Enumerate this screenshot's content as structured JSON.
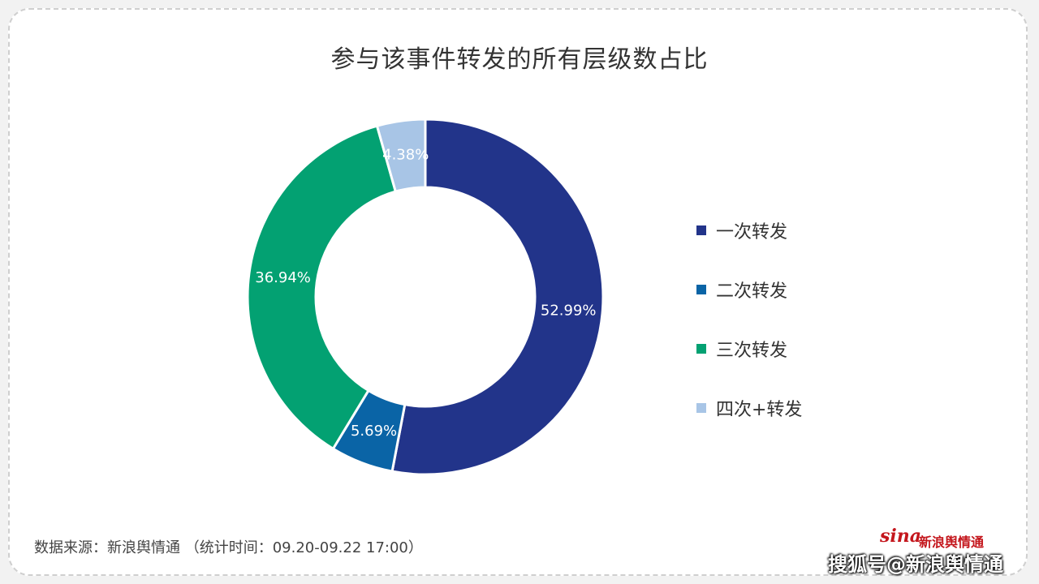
{
  "title": "参与该事件转发的所有层级数占比",
  "chart_data": {
    "type": "pie",
    "donut": true,
    "title": "参与该事件转发的所有层级数占比",
    "legend_position": "right",
    "categories": [
      "一次转发",
      "二次转发",
      "三次转发",
      "四次+转发"
    ],
    "values": [
      52.99,
      5.69,
      36.94,
      4.38
    ],
    "labels": [
      "52.99%",
      "5.69%",
      "36.94%",
      "4.38%"
    ],
    "colors": [
      "#22348a",
      "#0a64a6",
      "#03a172",
      "#a8c5e6"
    ]
  },
  "source": "数据来源：新浪舆情通 （统计时间：09.20-09.22 17:00）",
  "watermark": {
    "logo": "sina",
    "logo_cn": "新浪舆情通",
    "text": "搜狐号@新浪舆情通"
  }
}
